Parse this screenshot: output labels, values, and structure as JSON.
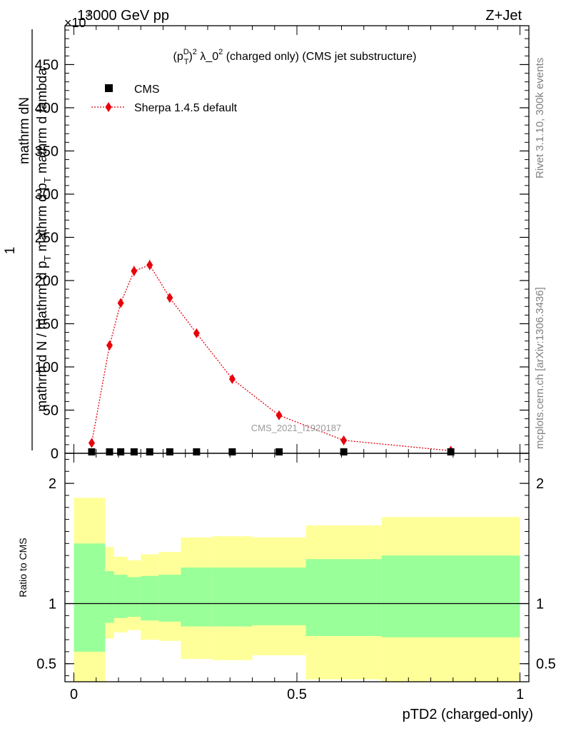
{
  "header": {
    "left": "13000 GeV pp",
    "right": "Z+Jet",
    "exponent_base": "×10",
    "exponent_power": "3"
  },
  "side_texts": {
    "rivet": "Rivet 3.1.10,  300k events",
    "mcplots": "mcplots.cern.ch [arXiv:1306.3436]"
  },
  "watermark": "CMS_2021_I1920187",
  "colors": {
    "mc": "#e8000b",
    "band_inner": "#99ff99",
    "band_outer": "#ffff99",
    "data": "#000000"
  },
  "chart_data": [
    {
      "type": "line",
      "title_parts": {
        "base": "(p",
        "sup": "D",
        "sub": "T",
        "close": ")",
        "sup2": "2",
        "mid": " λ_0",
        "sup3": "2",
        "tail": " (charged only) (CMS jet substructure)"
      },
      "ylabel": {
        "numerator": "mathrm dN",
        "one": "1",
        "den_a": "mathrm d N / mathrm d p",
        "den_a_sub": "T",
        "den_b": " mathrm d p",
        "den_b_sub": "T",
        "den_c": " mathrm d lambda"
      },
      "xlim": [
        -0.02,
        1.02
      ],
      "ylim": [
        0,
        0.495
      ],
      "y_scale_note": "×10^3",
      "y_ticks": [
        0,
        0.05,
        0.1,
        0.15,
        0.2,
        0.25,
        0.3,
        0.35,
        0.4,
        0.45
      ],
      "y_tick_labels": [
        "0",
        "50",
        "100",
        "150",
        "200",
        "250",
        "300",
        "350",
        "400",
        "450"
      ],
      "legend": {
        "placement": "top-left",
        "entries": [
          "CMS",
          "Sherpa 1.4.5 default"
        ]
      },
      "series": [
        {
          "name": "CMS",
          "marker": "square",
          "x": [
            0.04,
            0.08,
            0.105,
            0.135,
            0.17,
            0.215,
            0.275,
            0.355,
            0.46,
            0.605,
            0.845
          ],
          "y": [
            0.00035,
            0.00062,
            0.00055,
            0.0005,
            0.00042,
            0.00032,
            0.00023,
            0.00014,
            8.4e-05,
            2e-05,
            1.7e-06
          ]
        },
        {
          "name": "Sherpa 1.4.5 default",
          "marker": "diamond",
          "x": [
            0.04,
            0.08,
            0.105,
            0.135,
            0.17,
            0.215,
            0.275,
            0.355,
            0.46,
            0.605,
            0.845
          ],
          "y": [
            0.012,
            0.125,
            0.174,
            0.211,
            0.218,
            0.18,
            0.139,
            0.086,
            0.044,
            0.015,
            0.003
          ],
          "yerr": [
            0.002,
            0.005,
            0.005,
            0.006,
            0.006,
            0.005,
            0.004,
            0.003,
            0.003,
            0.002,
            0.001
          ]
        }
      ]
    },
    {
      "type": "area",
      "ylabel": "Ratio to CMS",
      "xlabel": "pTD2 (charged-only)",
      "xlim": [
        -0.02,
        1.02
      ],
      "ylim": [
        0.35,
        2.25
      ],
      "y_ticks": [
        0.5,
        1,
        2
      ],
      "y_tick_labels": [
        "0.5",
        "1",
        "2"
      ],
      "x_ticks": [
        0,
        0.5,
        1
      ],
      "x_tick_labels": [
        "0",
        "0.5",
        "1"
      ],
      "reference_line": 1,
      "bins": [
        0.0,
        0.07,
        0.09,
        0.12,
        0.15,
        0.19,
        0.24,
        0.31,
        0.4,
        0.52,
        0.69,
        1.0
      ],
      "inner_band": {
        "low": [
          0.6,
          0.84,
          0.88,
          0.89,
          0.86,
          0.85,
          0.81,
          0.81,
          0.82,
          0.73,
          0.72
        ],
        "high": [
          1.5,
          1.27,
          1.24,
          1.22,
          1.23,
          1.24,
          1.3,
          1.3,
          1.3,
          1.37,
          1.4
        ]
      },
      "outer_band": {
        "low": [
          0.35,
          0.71,
          0.76,
          0.78,
          0.7,
          0.69,
          0.54,
          0.53,
          0.57,
          0.37,
          0.35
        ],
        "high": [
          1.88,
          1.47,
          1.39,
          1.36,
          1.41,
          1.43,
          1.55,
          1.56,
          1.55,
          1.65,
          1.72
        ]
      }
    }
  ]
}
